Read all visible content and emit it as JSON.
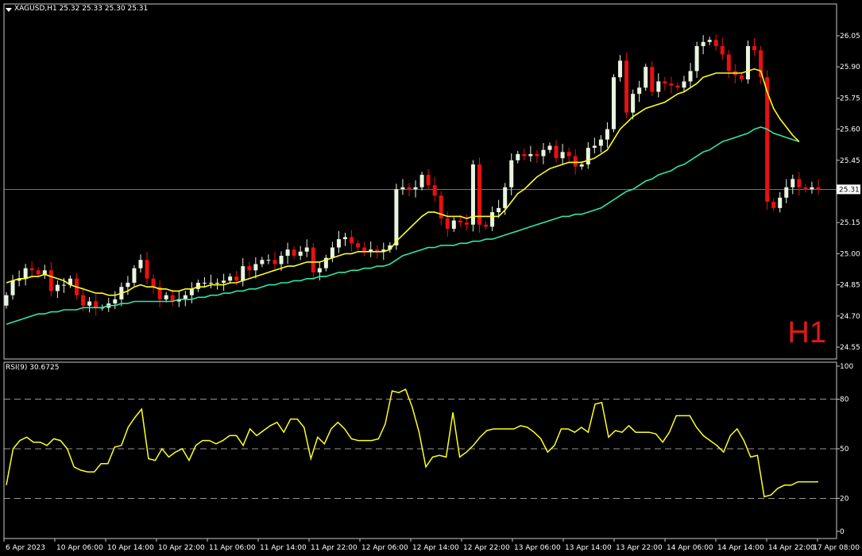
{
  "header": {
    "symbol_info": "XAGUSD,H1  25.32 25.33 25.30 25.31",
    "timeframe_badge": "H1"
  },
  "rsi_panel": {
    "label": "RSI(9) 30.6725"
  },
  "chart_data": [
    {
      "type": "candlestick",
      "symbol": "XAGUSD",
      "timeframe": "H1",
      "ylim": [
        24.5,
        26.1
      ],
      "y_ticks": [
        "26.05",
        "25.90",
        "25.75",
        "25.60",
        "25.45",
        "25.30",
        "25.15",
        "25.00",
        "24.85",
        "24.70",
        "24.55"
      ],
      "current_price": "25.31",
      "x_ticks": [
        "6 Apr 2023",
        "10 Apr 06:00",
        "10 Apr 14:00",
        "10 Apr 22:00",
        "11 Apr 06:00",
        "11 Apr 14:00",
        "11 Apr 22:00",
        "12 Apr 06:00",
        "12 Apr 14:00",
        "12 Apr 22:00",
        "13 Apr 06:00",
        "13 Apr 14:00",
        "13 Apr 22:00",
        "14 Apr 06:00",
        "14 Apr 14:00",
        "14 Apr 22:00",
        "17 Apr 08:00"
      ],
      "close": [
        24.8,
        24.87,
        24.88,
        24.93,
        24.92,
        24.9,
        24.92,
        24.82,
        24.85,
        24.85,
        24.88,
        24.8,
        24.75,
        24.77,
        24.74,
        24.74,
        24.76,
        24.78,
        24.84,
        24.86,
        24.93,
        24.97,
        24.88,
        24.84,
        24.78,
        24.8,
        24.77,
        24.78,
        24.8,
        24.83,
        24.86,
        24.86,
        24.86,
        24.86,
        24.87,
        24.89,
        24.87,
        24.94,
        24.92,
        24.95,
        24.97,
        24.97,
        24.95,
        24.99,
        25.02,
        24.99,
        25.01,
        25.03,
        24.91,
        24.93,
        24.98,
        25.03,
        25.07,
        25.08,
        25.05,
        25.03,
        25.01,
        25.02,
        25.01,
        25.02,
        25.04,
        25.31,
        25.32,
        25.31,
        25.32,
        25.38,
        25.33,
        25.28,
        25.17,
        25.12,
        25.16,
        25.15,
        25.14,
        25.43,
        25.14,
        25.13,
        25.2,
        25.22,
        25.32,
        25.45,
        25.48,
        25.47,
        25.48,
        25.47,
        25.5,
        25.52,
        25.46,
        25.49,
        25.47,
        25.42,
        25.43,
        25.51,
        25.52,
        25.55,
        25.6,
        25.85,
        25.93,
        25.68,
        25.77,
        25.8,
        25.9,
        25.78,
        25.83,
        25.82,
        25.81,
        25.8,
        25.83,
        25.88,
        26.0,
        26.02,
        26.03,
        26.0,
        25.96,
        25.88,
        25.86,
        25.84,
        26.0,
        25.98,
        25.85,
        25.25,
        25.22,
        25.27,
        25.32,
        25.36,
        25.32,
        25.31,
        25.32,
        25.31
      ],
      "sma_yellow": [
        24.86,
        24.87,
        24.88,
        24.88,
        24.89,
        24.89,
        24.9,
        24.89,
        24.88,
        24.87,
        24.85,
        24.84,
        24.83,
        24.82,
        24.81,
        24.81,
        24.8,
        24.8,
        24.81,
        24.82,
        24.84,
        24.85,
        24.84,
        24.84,
        24.83,
        24.83,
        24.82,
        24.82,
        24.83,
        24.83,
        24.84,
        24.84,
        24.85,
        24.85,
        24.85,
        24.86,
        24.86,
        24.87,
        24.88,
        24.89,
        24.9,
        24.91,
        24.92,
        24.93,
        24.94,
        24.94,
        24.95,
        24.96,
        24.96,
        24.96,
        24.97,
        24.98,
        24.99,
        25.0,
        25.0,
        25.01,
        25.01,
        25.01,
        25.01,
        25.01,
        25.02,
        25.06,
        25.09,
        25.12,
        25.15,
        25.18,
        25.2,
        25.2,
        25.19,
        25.18,
        25.18,
        25.18,
        25.17,
        25.18,
        25.18,
        25.18,
        25.18,
        25.18,
        25.21,
        25.25,
        25.29,
        25.31,
        25.34,
        25.37,
        25.39,
        25.41,
        25.42,
        25.43,
        25.44,
        25.44,
        25.44,
        25.45,
        25.46,
        25.48,
        25.5,
        25.55,
        25.6,
        25.63,
        25.66,
        25.68,
        25.7,
        25.71,
        25.72,
        25.73,
        25.75,
        25.77,
        25.78,
        25.8,
        25.82,
        25.85,
        25.86,
        25.87,
        25.87,
        25.87,
        25.87,
        25.87,
        25.88,
        25.89,
        25.88,
        25.78,
        25.7,
        25.65,
        25.61,
        25.57,
        25.54
      ],
      "sma_green": [
        24.66,
        24.67,
        24.68,
        24.69,
        24.7,
        24.71,
        24.71,
        24.72,
        24.72,
        24.73,
        24.73,
        24.73,
        24.74,
        24.74,
        24.74,
        24.74,
        24.75,
        24.75,
        24.76,
        24.76,
        24.77,
        24.77,
        24.77,
        24.77,
        24.77,
        24.77,
        24.77,
        24.78,
        24.78,
        24.78,
        24.79,
        24.79,
        24.8,
        24.8,
        24.81,
        24.81,
        24.82,
        24.82,
        24.83,
        24.83,
        24.84,
        24.85,
        24.85,
        24.86,
        24.86,
        24.87,
        24.87,
        24.88,
        24.88,
        24.89,
        24.89,
        24.9,
        24.91,
        24.91,
        24.92,
        24.92,
        24.93,
        24.93,
        24.94,
        24.94,
        24.95,
        24.97,
        24.99,
        25.0,
        25.01,
        25.02,
        25.03,
        25.03,
        25.04,
        25.04,
        25.04,
        25.05,
        25.05,
        25.06,
        25.06,
        25.07,
        25.07,
        25.08,
        25.09,
        25.1,
        25.11,
        25.12,
        25.13,
        25.14,
        25.15,
        25.16,
        25.17,
        25.18,
        25.18,
        25.19,
        25.19,
        25.2,
        25.21,
        25.22,
        25.24,
        25.26,
        25.28,
        25.3,
        25.31,
        25.33,
        25.35,
        25.36,
        25.38,
        25.39,
        25.4,
        25.42,
        25.43,
        25.45,
        25.47,
        25.49,
        25.5,
        25.52,
        25.54,
        25.55,
        25.56,
        25.57,
        25.58,
        25.6,
        25.61,
        25.6,
        25.58,
        25.57,
        25.56,
        25.55,
        25.54
      ]
    },
    {
      "type": "line",
      "indicator": "RSI(9)",
      "ylim": [
        0,
        100
      ],
      "y_ticks": [
        "100",
        "80",
        "50",
        "20",
        "0"
      ],
      "levels": [
        20,
        50,
        80
      ],
      "values": [
        28,
        50,
        55,
        57,
        54,
        54,
        52,
        56,
        55,
        50,
        39,
        37,
        36,
        36,
        41,
        41,
        51,
        52,
        63,
        69,
        74,
        44,
        43,
        50,
        45,
        48,
        50,
        43,
        52,
        55,
        55,
        53,
        55,
        58,
        58,
        52,
        62,
        58,
        61,
        64,
        66,
        60,
        68,
        68,
        63,
        44,
        57,
        53,
        62,
        66,
        62,
        56,
        55,
        55,
        55,
        56,
        65,
        85,
        84,
        86,
        75,
        60,
        39,
        45,
        46,
        45,
        72,
        45,
        48,
        52,
        57,
        61,
        62,
        62,
        62,
        62,
        64,
        63,
        60,
        56,
        48,
        52,
        62,
        62,
        60,
        63,
        60,
        77,
        78,
        57,
        61,
        60,
        64,
        60,
        60,
        60,
        59,
        54,
        60,
        70,
        70,
        70,
        63,
        58,
        55,
        52,
        48,
        58,
        62,
        55,
        45,
        46,
        21,
        22,
        26,
        28,
        28,
        30,
        30,
        30,
        30
      ],
      "current_value": "30.6725"
    }
  ],
  "timeframe_badge_color": "#e11818",
  "colors": {
    "bull_candle": "#e8f5e0",
    "bear_candle": "#e81010",
    "sma_yellow": "#ffff20",
    "sma_green": "#30e8a0",
    "rsi_line": "#ffff20",
    "grid_text": "#ffffff"
  }
}
